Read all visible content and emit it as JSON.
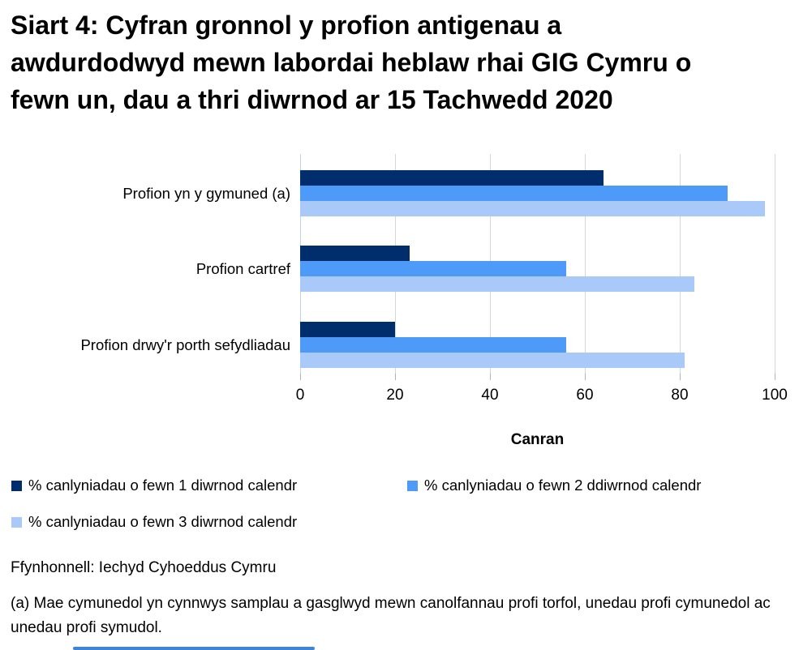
{
  "title": "Siart 4: Cyfran gronnol y profion antigenau a awdurdodwyd mewn labordai heblaw rhai GIG Cymru o fewn un, dau a thri diwrnod ar 15 Tachwedd 2020",
  "chart_data": {
    "type": "bar",
    "orientation": "horizontal",
    "categories": [
      "Profion yn y gymuned (a)",
      "Profion cartref",
      "Profion drwy'r porth sefydliadau"
    ],
    "series": [
      {
        "name": "% canlyniadau o fewn 1 diwrnod calendr",
        "color": "#002d6b",
        "values": [
          64,
          23,
          20
        ]
      },
      {
        "name": "% canlyniadau o fewn 2 ddiwrnod calendr",
        "color": "#4e9af9",
        "values": [
          90,
          56,
          56
        ]
      },
      {
        "name": "% canlyniadau o fewn 3 diwrnod calendr",
        "color": "#a9c9f9",
        "values": [
          98,
          83,
          81
        ]
      }
    ],
    "xlabel": "Canran",
    "xlim": [
      0,
      100
    ],
    "xticks": [
      0,
      20,
      40,
      60,
      80,
      100
    ],
    "grid": true,
    "legend_position": "bottom",
    "axis_line_color": "#bdd7ee",
    "gridline_color": "#d6d6d6"
  },
  "source": "Ffynhonnell: Iechyd Cyhoeddus Cymru",
  "footnote": "(a) Mae cymunedol yn cynnwys samplau a gasglwyd mewn canolfannau profi torfol, unedau profi cymunedol ac unedau profi symudol."
}
